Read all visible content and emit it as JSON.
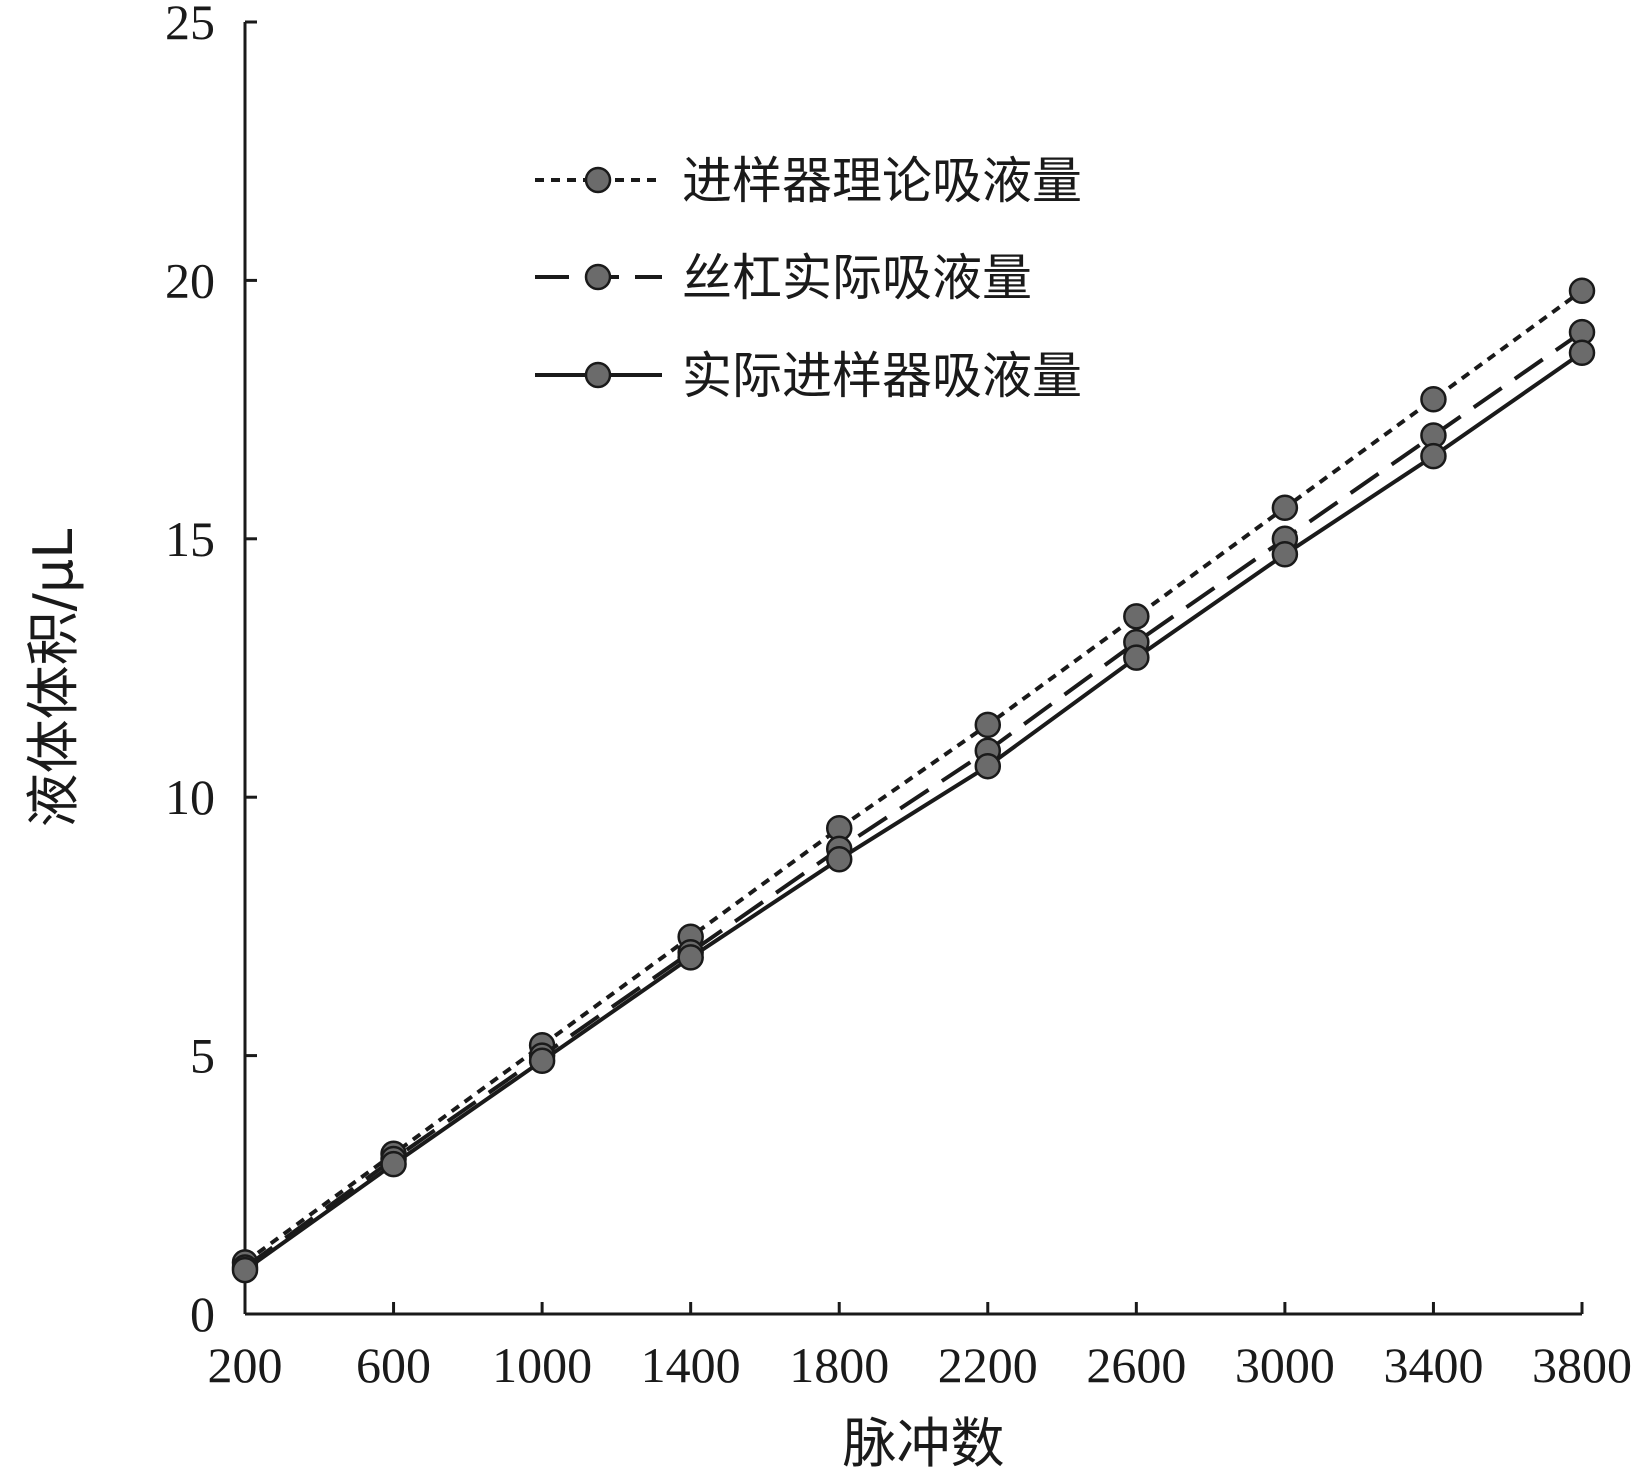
{
  "chart_data": {
    "type": "line",
    "xlabel": "脉冲数",
    "ylabel": "液体体积/μL",
    "xlim": [
      200,
      3800
    ],
    "ylim": [
      0,
      25
    ],
    "x_ticks": [
      "200",
      "600",
      "1000",
      "1400",
      "1800",
      "2200",
      "2600",
      "3000",
      "3400",
      "3800"
    ],
    "y_ticks": [
      "0",
      "5",
      "10",
      "15",
      "20",
      "25"
    ],
    "grid": false,
    "legend_position": "top-center",
    "x": [
      200,
      600,
      1000,
      1400,
      1800,
      2200,
      2600,
      3000,
      3400,
      3800
    ],
    "series": [
      {
        "name": "进样器理论吸液量",
        "line_style": "dotted",
        "values": [
          1.0,
          3.1,
          5.2,
          7.3,
          9.4,
          11.4,
          13.5,
          15.6,
          17.7,
          19.8
        ]
      },
      {
        "name": "丝杠实际吸液量",
        "line_style": "dashed",
        "values": [
          0.9,
          3.0,
          5.0,
          7.0,
          9.0,
          10.9,
          13.0,
          15.0,
          17.0,
          19.0
        ]
      },
      {
        "name": "实际进样器吸液量",
        "line_style": "solid",
        "values": [
          0.85,
          2.9,
          4.9,
          6.9,
          8.8,
          10.6,
          12.7,
          14.7,
          16.6,
          18.6
        ]
      }
    ],
    "colors": {
      "line": "#1a1a1a",
      "marker_fill": "#6b6b6b",
      "marker_stroke": "#1a1a1a"
    }
  }
}
